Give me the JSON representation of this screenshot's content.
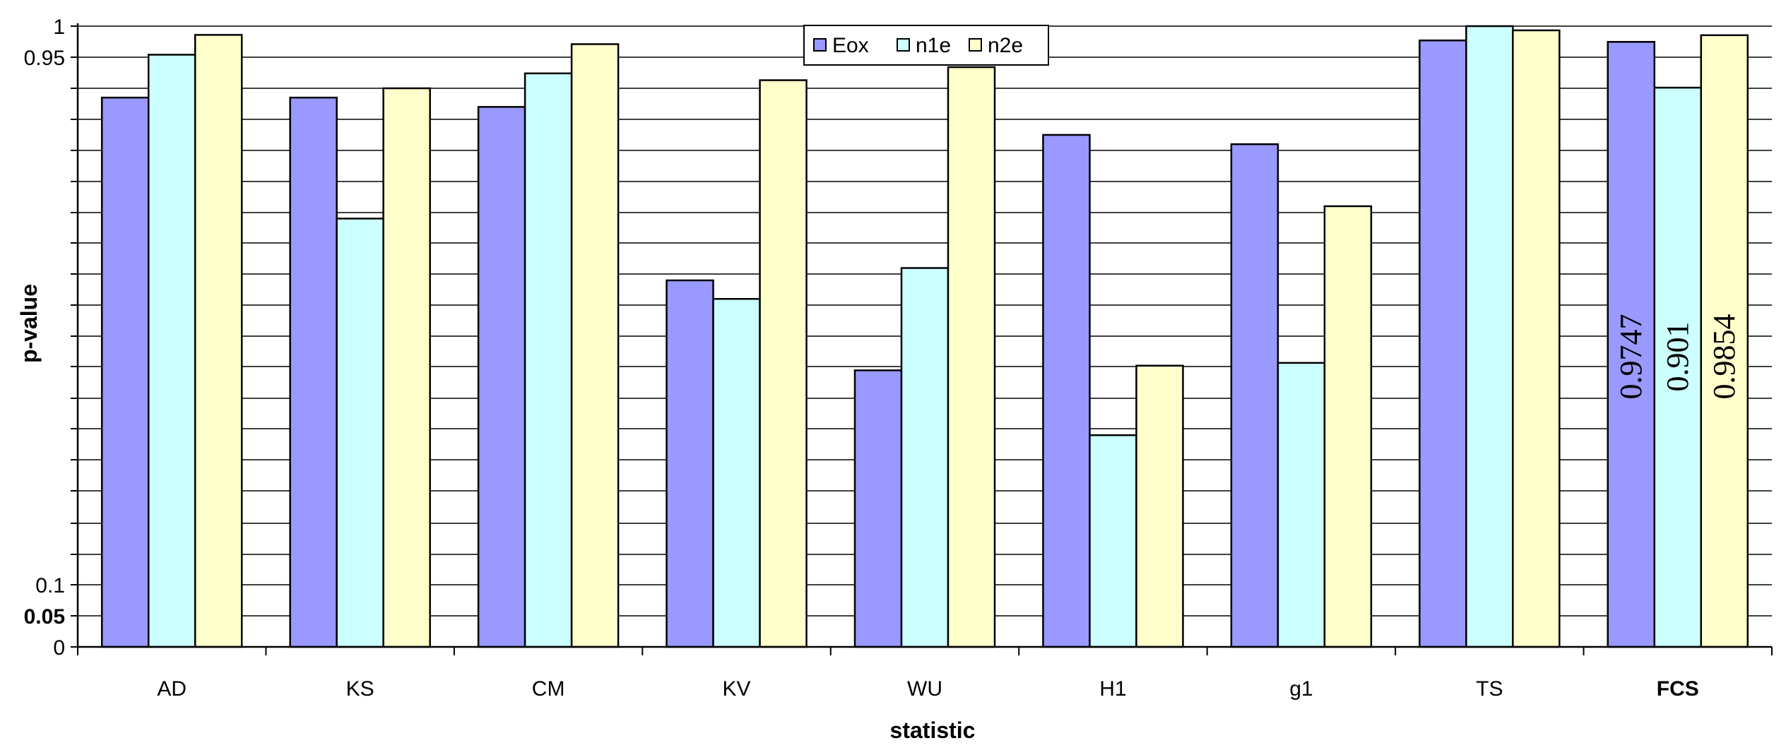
{
  "chart_data": {
    "type": "bar",
    "title": "",
    "xlabel": "statistic",
    "ylabel": "p-value",
    "ylim": [
      0,
      1
    ],
    "y_scale": "nonlinear (0, 0.05 and 0.1 near the bottom; 0.95 and 1 at the top)",
    "y_tick_labels": [
      {
        "value": 0,
        "label": "0",
        "bold": false
      },
      {
        "value": 0.05,
        "label": "0.05",
        "bold": true
      },
      {
        "value": 0.1,
        "label": "0.1",
        "bold": false
      },
      {
        "value": 0.95,
        "label": "0.95",
        "bold": false
      },
      {
        "value": 1,
        "label": "1",
        "bold": false
      }
    ],
    "categories": [
      "AD",
      "KS",
      "CM",
      "KV",
      "WU",
      "H1",
      "g1",
      "TS",
      "FCS"
    ],
    "bold_categories": [
      "FCS"
    ],
    "grid": true,
    "legend_position": "top-center",
    "series": [
      {
        "name": "Eox",
        "color": "#9999ff",
        "values": [
          0.89,
          0.89,
          0.88,
          0.72,
          0.63,
          0.85,
          0.84,
          0.977,
          0.9747
        ]
      },
      {
        "name": "n1e",
        "color": "#ccffff",
        "values": [
          0.954,
          0.77,
          0.924,
          0.705,
          0.73,
          0.54,
          0.638,
          1.0,
          0.901
        ]
      },
      {
        "name": "n2e",
        "color": "#ffffcc",
        "values": [
          0.9859,
          0.9,
          0.971,
          0.913,
          0.934,
          0.635,
          0.78,
          0.9932,
          0.9854
        ]
      }
    ],
    "data_labels": [
      {
        "category": "FCS",
        "series": "Eox",
        "text": "0.9747"
      },
      {
        "category": "FCS",
        "series": "n1e",
        "text": "0.901"
      },
      {
        "category": "FCS",
        "series": "n2e",
        "text": "0.9854"
      }
    ]
  }
}
